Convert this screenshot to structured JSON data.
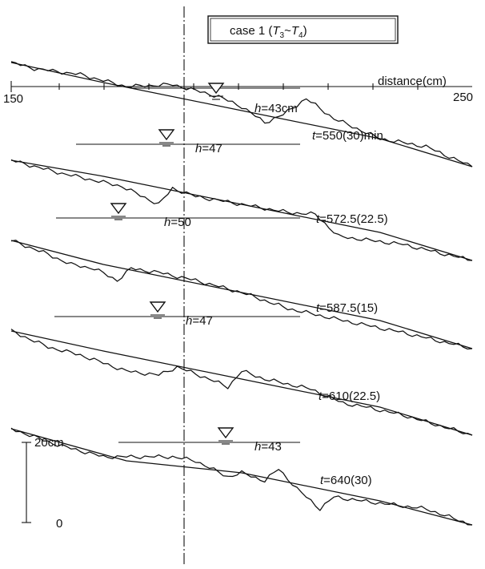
{
  "chart_data": {
    "type": "line",
    "title": "case 1",
    "title_sub": {
      "T1": "3",
      "T2": "4"
    },
    "x_axis": {
      "label": "distance(cm)",
      "min": 150,
      "max": 250,
      "ticks": [
        "150",
        "250"
      ]
    },
    "scale_bar": {
      "top_label": "20cm",
      "bottom_label": "0",
      "length_cm": 20
    },
    "panels": [
      {
        "t_label": "550(30)min",
        "h_label": "43cm",
        "initial": [
          [
            150,
            4
          ],
          [
            170,
            -1
          ],
          [
            200,
            -8
          ],
          [
            230,
            -15
          ],
          [
            250,
            -22
          ]
        ],
        "bed": [
          [
            150,
            4
          ],
          [
            155,
            2.5
          ],
          [
            165,
            1
          ],
          [
            175,
            -2
          ],
          [
            185,
            -1.5
          ],
          [
            190,
            -3
          ],
          [
            195,
            -4.5
          ],
          [
            200,
            -7
          ],
          [
            205,
            -11
          ],
          [
            209,
            -9
          ],
          [
            214,
            -5
          ],
          [
            220,
            -10
          ],
          [
            226,
            -13
          ],
          [
            230,
            -15
          ],
          [
            240,
            -17
          ],
          [
            250,
            -22
          ]
        ]
      },
      {
        "t_label": "572.5(22.5)",
        "h_label": "47",
        "initial": [
          [
            150,
            3
          ],
          [
            170,
            -1
          ],
          [
            200,
            -8
          ],
          [
            230,
            -15
          ],
          [
            250,
            -22
          ]
        ],
        "bed": [
          [
            150,
            3
          ],
          [
            160,
            0
          ],
          [
            168,
            -2
          ],
          [
            174,
            -3.5
          ],
          [
            182,
            -8
          ],
          [
            185,
            -4
          ],
          [
            190,
            -6
          ],
          [
            200,
            -8
          ],
          [
            210,
            -10
          ],
          [
            216,
            -10.5
          ],
          [
            221,
            -16
          ],
          [
            235,
            -18
          ],
          [
            250,
            -22
          ]
        ]
      },
      {
        "t_label": "587.5(15)",
        "h_label": "50",
        "initial": [
          [
            150,
            5
          ],
          [
            170,
            -1
          ],
          [
            200,
            -8
          ],
          [
            230,
            -15
          ],
          [
            250,
            -22
          ]
        ],
        "bed": [
          [
            150,
            5
          ],
          [
            157,
            2
          ],
          [
            163,
            -1
          ],
          [
            168,
            -2
          ],
          [
            173,
            -5
          ],
          [
            176,
            -2
          ],
          [
            182,
            -3
          ],
          [
            190,
            -5
          ],
          [
            200,
            -8
          ],
          [
            210,
            -12
          ],
          [
            222,
            -15
          ],
          [
            235,
            -18
          ],
          [
            250,
            -22
          ]
        ]
      },
      {
        "t_label": "610(22.5)",
        "h_label": "47",
        "initial": [
          [
            150,
            4
          ],
          [
            170,
            -1
          ],
          [
            200,
            -8
          ],
          [
            230,
            -15
          ],
          [
            250,
            -22
          ]
        ],
        "bed": [
          [
            150,
            4
          ],
          [
            158,
            0
          ],
          [
            165,
            -2
          ],
          [
            175,
            -6
          ],
          [
            182,
            -7
          ],
          [
            186,
            -5
          ],
          [
            193,
            -8
          ],
          [
            197,
            -10
          ],
          [
            200,
            -6
          ],
          [
            205,
            -8
          ],
          [
            215,
            -10.5
          ],
          [
            222,
            -14
          ],
          [
            227,
            -15
          ],
          [
            235,
            -17
          ],
          [
            250,
            -22
          ]
        ]
      },
      {
        "t_label": "640(30)",
        "h_label": "43",
        "initial": [
          [
            150,
            2
          ],
          [
            175,
            -6
          ],
          [
            200,
            -9
          ],
          [
            230,
            -16
          ],
          [
            250,
            -22
          ]
        ],
        "bed": [
          [
            150,
            2
          ],
          [
            160,
            -2
          ],
          [
            170,
            -5
          ],
          [
            185,
            -5
          ],
          [
            190,
            -6
          ],
          [
            197,
            -10
          ],
          [
            200,
            -9
          ],
          [
            205,
            -11
          ],
          [
            208,
            -8
          ],
          [
            212,
            -13
          ],
          [
            217,
            -18
          ],
          [
            220,
            -15
          ],
          [
            226,
            -16
          ],
          [
            240,
            -18
          ],
          [
            250,
            -22
          ]
        ]
      }
    ]
  }
}
